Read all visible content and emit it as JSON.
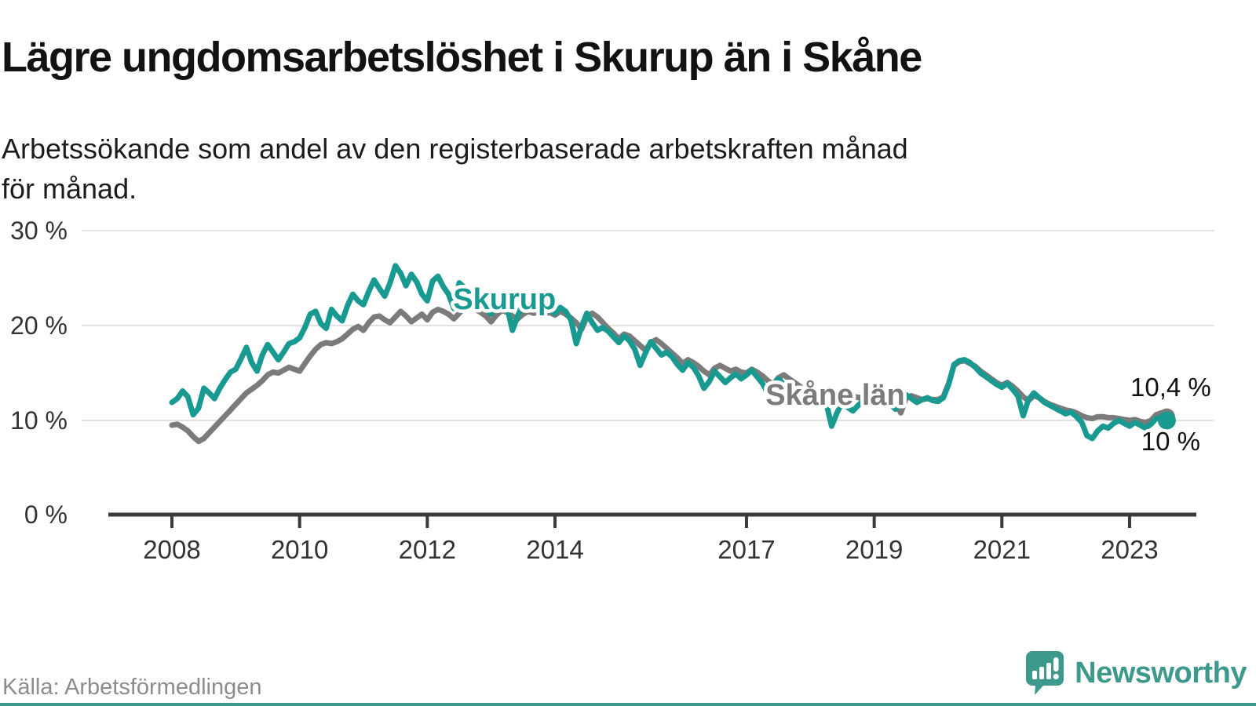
{
  "header": {
    "title": "Lägre ungdomsarbetslöshet i Skurup än i Skåne",
    "subtitle": "Arbetssökande som andel av den registerbaserade arbetskraften månad\nför månad."
  },
  "footer": {
    "source": "Källa: Arbetsförmedlingen",
    "brand": "Newsworthy",
    "brand_icon": "speech-bubble-chart-icon"
  },
  "colors": {
    "skurup_line": "#189a90",
    "skane_line": "#7b7b7b",
    "axis": "#3a3a3a",
    "grid": "#e2e2e2",
    "tick_text": "#333333",
    "value_label_text": "#111111",
    "brand_teal": "#3d998c"
  },
  "chart_data": {
    "type": "line",
    "x_range": {
      "start": "2008-01",
      "end": "2023-08",
      "points_per_year": 12
    },
    "x_axis": {
      "tick_years": [
        2008,
        2010,
        2012,
        2014,
        2017,
        2019,
        2021,
        2023
      ]
    },
    "y_axis": {
      "ylim": [
        0,
        32
      ],
      "ticks": [
        {
          "value": 30,
          "label": "30 %"
        },
        {
          "value": 20,
          "label": "20 %"
        },
        {
          "value": 10,
          "label": "10 %"
        },
        {
          "value": 0,
          "label": "0 %"
        }
      ]
    },
    "grid": "horizontal",
    "legend": "inline-labels",
    "series": [
      {
        "name": "Skåne län",
        "color": "#7b7b7b",
        "end_label": "10,4 %",
        "end_label_side": "above",
        "end_value": 10.4,
        "values": [
          9.5,
          9.6,
          9.3,
          8.9,
          8.3,
          7.8,
          8.1,
          8.7,
          9.3,
          9.9,
          10.5,
          11.1,
          11.7,
          12.3,
          12.9,
          13.3,
          13.7,
          14.2,
          14.8,
          15.1,
          15.0,
          15.3,
          15.6,
          15.4,
          15.2,
          16.0,
          16.8,
          17.5,
          18.0,
          18.2,
          18.1,
          18.3,
          18.6,
          19.1,
          19.6,
          19.9,
          19.5,
          20.3,
          20.9,
          21.0,
          20.6,
          20.3,
          20.9,
          21.5,
          21.0,
          20.4,
          20.8,
          21.2,
          20.6,
          21.4,
          21.7,
          21.5,
          21.2,
          20.7,
          21.3,
          21.9,
          22.0,
          21.7,
          21.4,
          21.0,
          20.4,
          21.1,
          21.6,
          21.4,
          21.0,
          20.7,
          21.2,
          21.5,
          21.3,
          21.4,
          21.2,
          21.4,
          21.1,
          21.5,
          21.2,
          20.8,
          20.3,
          19.6,
          20.9,
          21.3,
          20.9,
          20.3,
          19.7,
          19.2,
          18.6,
          19.1,
          18.9,
          18.4,
          17.9,
          17.4,
          18.2,
          18.5,
          18.1,
          17.6,
          17.1,
          16.6,
          16.0,
          16.4,
          16.1,
          15.7,
          15.2,
          14.8,
          15.5,
          15.8,
          15.5,
          15.2,
          15.4,
          15.1,
          15.0,
          15.4,
          15.1,
          14.7,
          14.2,
          13.8,
          14.5,
          14.8,
          14.4,
          14.0,
          13.6,
          13.2,
          12.9,
          13.2,
          13.0,
          12.7,
          12.3,
          12.0,
          12.6,
          12.9,
          12.6,
          12.4,
          12.5,
          12.3,
          12.3,
          12.5,
          12.4,
          12.2,
          12.0,
          10.8,
          12.4,
          12.6,
          12.4,
          12.2,
          12.3,
          12.2,
          12.2,
          12.5,
          13.9,
          15.8,
          16.2,
          16.3,
          16.0,
          15.7,
          15.2,
          14.8,
          14.4,
          14.0,
          13.7,
          14.0,
          13.6,
          13.1,
          12.5,
          12.1,
          12.6,
          12.4,
          12.0,
          11.7,
          11.5,
          11.3,
          11.1,
          11.0,
          10.8,
          10.5,
          10.3,
          10.2,
          10.4,
          10.4,
          10.3,
          10.3,
          10.2,
          10.1,
          10.0,
          10.1,
          9.9,
          9.8,
          10.0,
          10.6,
          10.8,
          10.4
        ]
      },
      {
        "name": "Skurup",
        "color": "#189a90",
        "end_label": "10 %",
        "end_label_side": "below",
        "end_value": 10.0,
        "values": [
          11.9,
          12.3,
          13.1,
          12.5,
          10.6,
          11.3,
          13.4,
          12.9,
          12.3,
          13.4,
          14.3,
          15.1,
          15.4,
          16.5,
          17.7,
          16.1,
          15.2,
          16.9,
          18.0,
          17.2,
          16.4,
          17.2,
          18.1,
          18.3,
          18.7,
          19.8,
          21.2,
          21.5,
          20.2,
          19.7,
          21.7,
          21.0,
          20.5,
          22.1,
          23.3,
          22.6,
          22.2,
          23.6,
          24.8,
          23.9,
          23.1,
          24.5,
          26.3,
          25.5,
          24.2,
          25.4,
          24.6,
          23.3,
          22.6,
          24.7,
          25.2,
          24.1,
          23.3,
          21.8,
          24.5,
          24.0,
          23.5,
          23.8,
          23.2,
          21.9,
          21.2,
          22.4,
          23.0,
          21.9,
          19.5,
          21.0,
          22.4,
          23.2,
          22.0,
          21.6,
          21.4,
          21.7,
          21.3,
          21.9,
          21.5,
          20.6,
          18.1,
          19.9,
          21.3,
          20.3,
          19.5,
          19.8,
          19.4,
          18.8,
          18.2,
          18.9,
          18.4,
          17.5,
          15.8,
          17.1,
          18.3,
          17.6,
          16.9,
          17.2,
          16.7,
          15.9,
          15.3,
          16.1,
          15.6,
          14.7,
          13.4,
          14.1,
          15.2,
          14.6,
          14.0,
          14.5,
          14.9,
          14.4,
          14.8,
          15.3,
          14.6,
          13.9,
          12.9,
          13.6,
          14.4,
          13.8,
          13.1,
          13.5,
          13.0,
          12.6,
          12.4,
          12.9,
          12.5,
          11.8,
          9.4,
          10.8,
          11.9,
          11.4,
          11.0,
          11.6,
          12.1,
          11.8,
          12.2,
          12.6,
          12.3,
          11.7,
          11.2,
          11.9,
          12.7,
          12.3,
          11.9,
          12.2,
          12.4,
          12.1,
          12.0,
          12.4,
          13.8,
          15.9,
          16.3,
          16.4,
          16.1,
          15.6,
          15.0,
          14.6,
          14.2,
          13.8,
          13.5,
          13.9,
          13.3,
          12.6,
          10.5,
          12.2,
          12.9,
          12.4,
          11.9,
          11.6,
          11.3,
          11.0,
          10.7,
          10.9,
          10.4,
          9.8,
          8.4,
          8.1,
          8.9,
          9.4,
          9.2,
          9.7,
          10.0,
          9.7,
          9.4,
          9.8,
          9.5,
          9.2,
          9.6,
          10.2,
          10.3,
          10.0
        ]
      }
    ],
    "annotations": [
      {
        "text": "Skurup",
        "series": "Skurup",
        "at_year": 2013.21,
        "at_value": 22.8
      },
      {
        "text": "Skåne län",
        "series": "Skåne län",
        "at_year": 2018.39,
        "at_value": 12.73
      }
    ]
  }
}
